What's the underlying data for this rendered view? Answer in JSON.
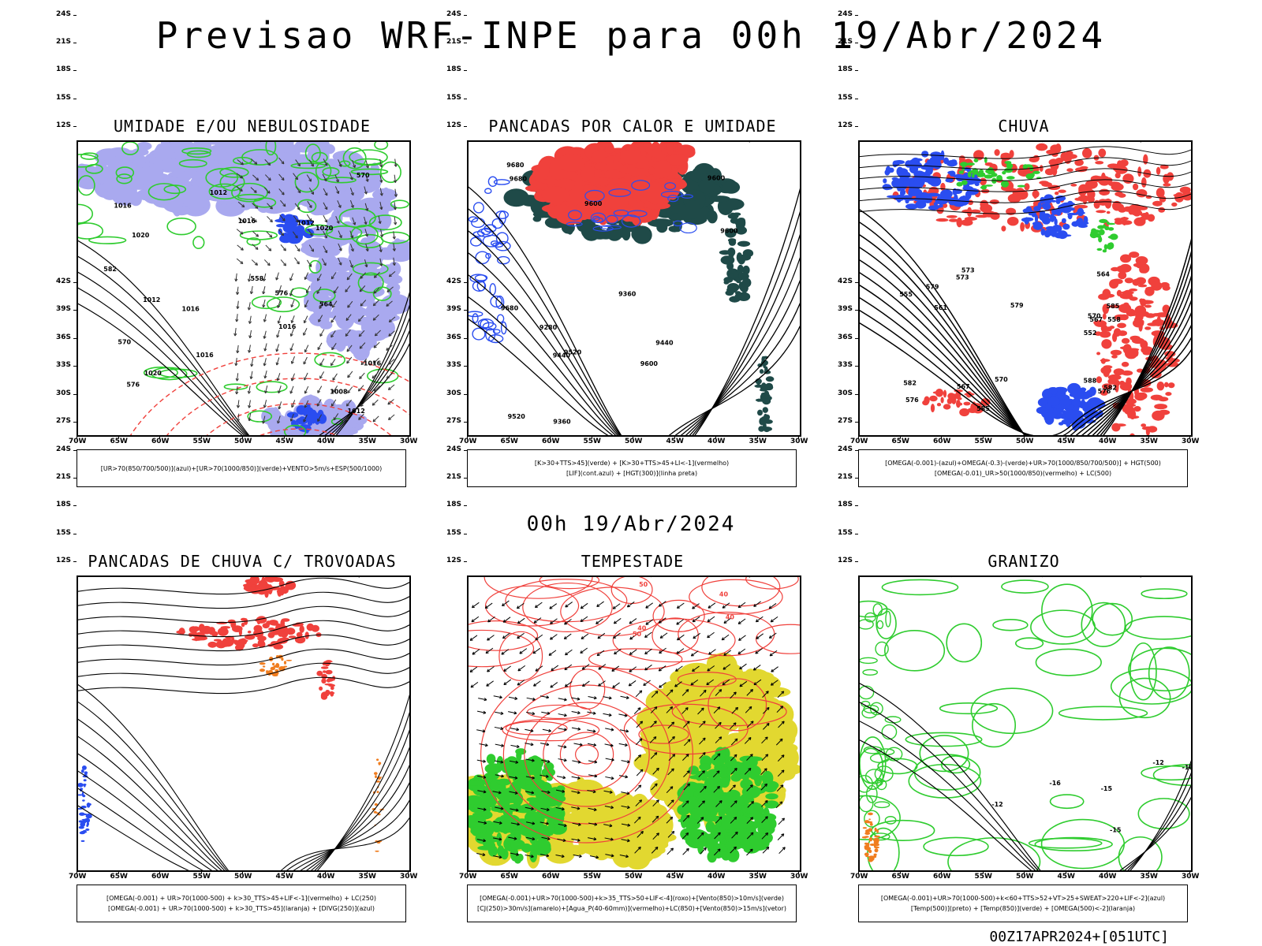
{
  "title": "Previsao WRF-INPE  para 00h 19/Abr/2024",
  "mid_date": "00h 19/Abr/2024",
  "footer": "00Z17APR2024+[051UTC]",
  "lat_ticks": [
    "12S",
    "15S",
    "18S",
    "21S",
    "24S",
    "27S",
    "30S",
    "33S",
    "36S",
    "39S",
    "42S"
  ],
  "lon_ticks": [
    "70W",
    "65W",
    "60W",
    "55W",
    "50W",
    "45W",
    "40W",
    "35W",
    "30W"
  ],
  "colors": {
    "red": "#f0413c",
    "green": "#2fcc2f",
    "blue": "#2a4df0",
    "lavender": "#a9a9ef",
    "darkteal": "#1f4a48",
    "yellow": "#e2d830",
    "orange": "#f07d1f"
  },
  "panels": [
    {
      "id": "umidade",
      "title": "UMIDADE E/OU NEBULOSIDADE",
      "legend": [
        "[UR>70(850/700/500)](azul)+[UR>70(1000/850)](verde)+VENTO>5m/s+ESP(500/1000)"
      ],
      "contour_labels": [
        "1012",
        "1012",
        "1016",
        "1016",
        "1016",
        "1020",
        "1020",
        "1016",
        "1020",
        "1016",
        "1012",
        "1008",
        "1016",
        "1012",
        "576",
        "570",
        "564",
        "558",
        "582",
        "576",
        "570"
      ]
    },
    {
      "id": "pancadas-calor",
      "title": "PANCADAS POR CALOR E UMIDADE",
      "legend": [
        "[K>30+TTS>45](verde) + [K>30+TTS>45+LI<-1](vermelho)",
        "[LIF](cont.azul) + [HGT(300)](linha preta)"
      ],
      "contour_labels": [
        "9680",
        "9680",
        "9680",
        "9600",
        "9600",
        "9600",
        "9600",
        "9520",
        "9520",
        "9440",
        "9440",
        "9360",
        "9360",
        "9280"
      ]
    },
    {
      "id": "chuva",
      "title": "CHUVA",
      "legend": [
        "[OMEGA(-0.001)-(azul)+OMEGA(-0.3)-(verde)+UR>70(1000/850/700/500)] + HGT(500)",
        "[OMEGA(-0.01)_UR>50(1000/850)(vermelho) + LC(500)"
      ],
      "contour_labels": [
        "588",
        "585",
        "582",
        "579",
        "576",
        "573",
        "570",
        "567",
        "564",
        "561",
        "558",
        "555",
        "552",
        "585",
        "582",
        "579",
        "576",
        "573",
        "570",
        "567"
      ]
    },
    {
      "id": "pancadas-trovoadas",
      "title": "PANCADAS DE CHUVA C/ TROVOADAS",
      "legend": [
        "[OMEGA(-0.001) + UR>70(1000-500) + k>30_TTS>45+LIF<-1](vermelho) + LC(250)",
        "[OMEGA(-0.001) + UR>70(1000-500) + k>30_TTS>45](laranja) + [DIVG(250)](azul)"
      ],
      "contour_labels": []
    },
    {
      "id": "tempestade",
      "title": "TEMPESTADE",
      "legend": [
        "[OMEGA(-0.001)+UR>70(1000-500)+k>35_TTS>50+LIF<-4](roxo)+[Vento(850)>10m/s](verde)",
        "[CJ(250)>30m/s](amarelo)+[Agua_P(40-60mm)](vermelho)+LC(850)+[Vento(850)>15m/s](vetor)"
      ],
      "contour_labels": [
        "50",
        "40",
        "40",
        "50",
        "40"
      ]
    },
    {
      "id": "granizo",
      "title": "GRANIZO",
      "legend": [
        "[OMEGA(-0.001)+UR>70(1000-500)+k<60+TTS>52+VT>25+SWEAT>220+LIF<-2](azul)",
        "[Temp(500)](preto) + [Temp(850)](verde) + [OMEGA(500)<-2](laranja)"
      ],
      "contour_labels": [
        "-12",
        "-15",
        "-15",
        "-12",
        "-16",
        "-18"
      ]
    }
  ]
}
